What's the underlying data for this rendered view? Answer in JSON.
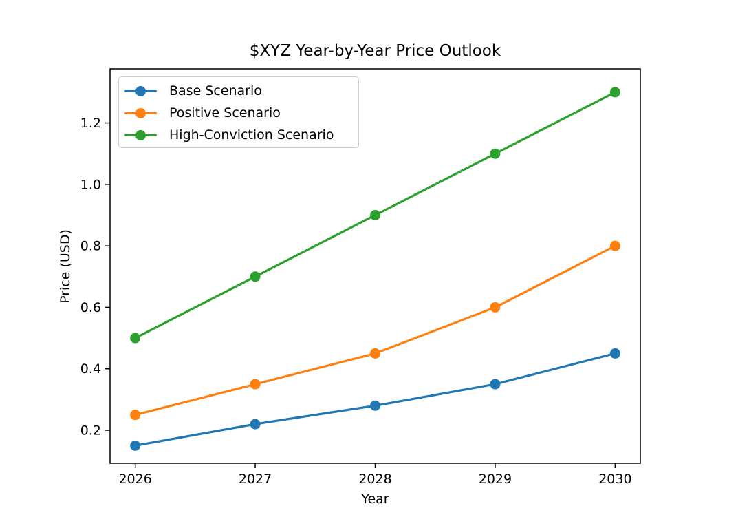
{
  "figure": {
    "background": "#ffffff",
    "text_color": "#000000",
    "spine_color": "#000000"
  },
  "chart_data": {
    "type": "line",
    "title": "$XYZ Year-by-Year Price Outlook",
    "xlabel": "Year",
    "ylabel": "Price (USD)",
    "x": [
      2026,
      2027,
      2028,
      2029,
      2030
    ],
    "x_tick_labels": [
      "2026",
      "2027",
      "2028",
      "2029",
      "2030"
    ],
    "y_ticks": [
      0.2,
      0.4,
      0.6,
      0.8,
      1.0,
      1.2
    ],
    "y_tick_labels": [
      "0.2",
      "0.4",
      "0.6",
      "0.8",
      "1.0",
      "1.2"
    ],
    "xlim": [
      2025.79,
      2030.21
    ],
    "ylim": [
      0.0925,
      1.376
    ],
    "grid": false,
    "legend_position": "upper left",
    "series": [
      {
        "name": "Base Scenario",
        "color": "#1f77b4",
        "values": [
          0.15,
          0.22,
          0.28,
          0.35,
          0.45
        ]
      },
      {
        "name": "Positive Scenario",
        "color": "#ff7f0e",
        "values": [
          0.25,
          0.35,
          0.45,
          0.6,
          0.8
        ]
      },
      {
        "name": "High-Conviction Scenario",
        "color": "#2ca02c",
        "values": [
          0.5,
          0.7,
          0.9,
          1.1,
          1.3
        ]
      }
    ]
  }
}
